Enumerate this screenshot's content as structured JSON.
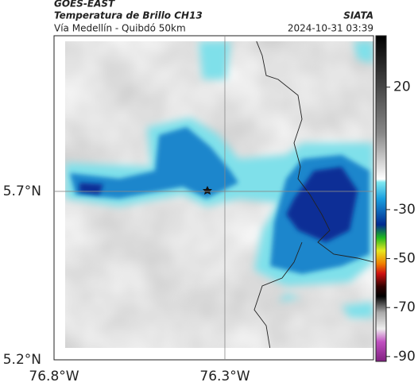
{
  "header": {
    "source": "GOES-EAST",
    "title": "Temperatura de Brillo CH13",
    "subtitle": "Vía Medellín - Quibdó 50km",
    "brand": "SIATA",
    "timestamp": "2024-10-31 03:39"
  },
  "map": {
    "xlim": [
      -76.8,
      -75.865
    ],
    "ylim": [
      5.2,
      6.162
    ],
    "xticks": [
      {
        "value": -76.8,
        "label": "76.8°W"
      },
      {
        "value": -76.3,
        "label": "76.3°W"
      }
    ],
    "yticks": [
      {
        "value": 5.2,
        "label": "5.2°N"
      },
      {
        "value": 5.7,
        "label": "5.7°N"
      }
    ]
  },
  "colorbar": {
    "lim": [
      -92,
      41
    ],
    "ticks": [
      20,
      -30,
      -50,
      -70,
      -90
    ]
  }
}
